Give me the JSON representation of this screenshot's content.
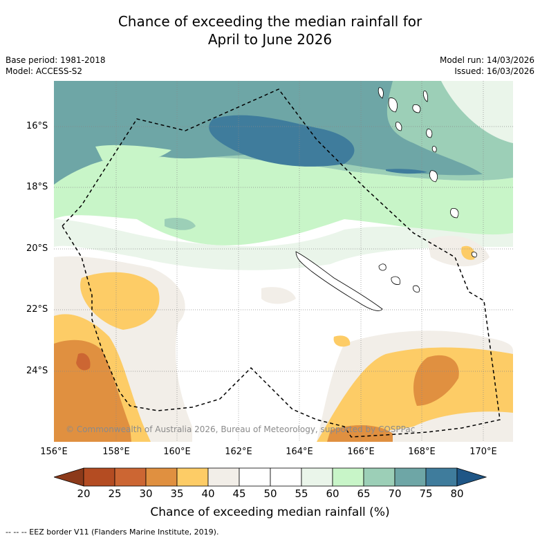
{
  "title_line1": "Chance of exceeding the median rainfall for",
  "title_line2": "April to June 2026",
  "base_period": "Base period: 1981-2018",
  "model": "Model: ACCESS-S2",
  "model_run": "Model run: 14/03/2026",
  "issued": "Issued: 16/03/2026",
  "lat_labels": [
    "16°S",
    "18°S",
    "20°S",
    "22°S",
    "24°S"
  ],
  "lon_labels": [
    "156°E",
    "158°E",
    "160°E",
    "162°E",
    "164°E",
    "166°E",
    "168°E",
    "170°E"
  ],
  "colorbar": {
    "ticks": [
      "20",
      "25",
      "30",
      "35",
      "40",
      "45",
      "50",
      "55",
      "60",
      "65",
      "70",
      "75",
      "80"
    ],
    "colors": [
      "#8c3a1a",
      "#b44c22",
      "#cc6633",
      "#e09040",
      "#fdcc66",
      "#f2eee8",
      "#ffffff",
      "#ffffff",
      "#eaf5ea",
      "#c8f5c8",
      "#9ccfb7",
      "#6ea6a6",
      "#3f7c9c",
      "#1f5686"
    ],
    "label": "Chance of exceeding median rainfall (%)"
  },
  "copyright": "© Commonwealth of Australia 2026, Bureau of Meteorology, supported by COSPPac",
  "footnote": "--  --  -- EEZ border V11 (Flanders Marine Institute, 2019)."
}
